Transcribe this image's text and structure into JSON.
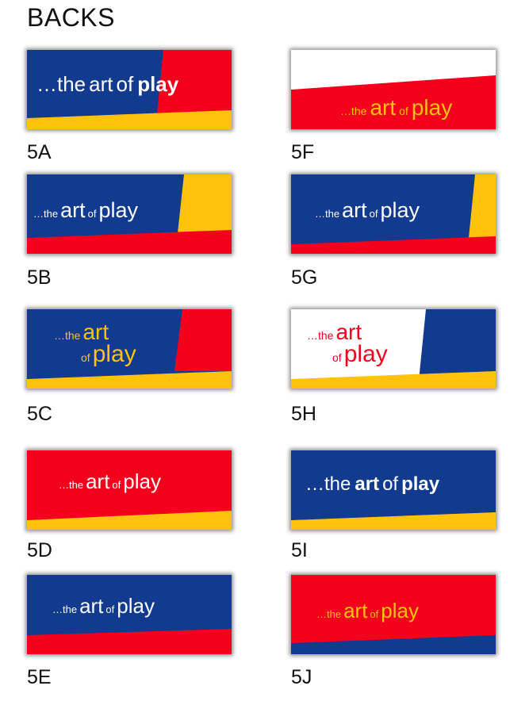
{
  "page_title": "BACKS",
  "colors": {
    "blue": "#123a8f",
    "red": "#f2001c",
    "yellow": "#ffc20e",
    "white": "#ffffff"
  },
  "tagline": {
    "ellipsis_the": "…the",
    "art": "art",
    "of": "of",
    "play": "play",
    "full": "…the art of play"
  },
  "cards": [
    {
      "id": "5A",
      "label": "5A"
    },
    {
      "id": "5F",
      "label": "5F"
    },
    {
      "id": "5B",
      "label": "5B"
    },
    {
      "id": "5G",
      "label": "5G"
    },
    {
      "id": "5C",
      "label": "5C"
    },
    {
      "id": "5H",
      "label": "5H"
    },
    {
      "id": "5D",
      "label": "5D"
    },
    {
      "id": "5I",
      "label": "5I"
    },
    {
      "id": "5E",
      "label": "5E"
    },
    {
      "id": "5J",
      "label": "5J"
    }
  ]
}
